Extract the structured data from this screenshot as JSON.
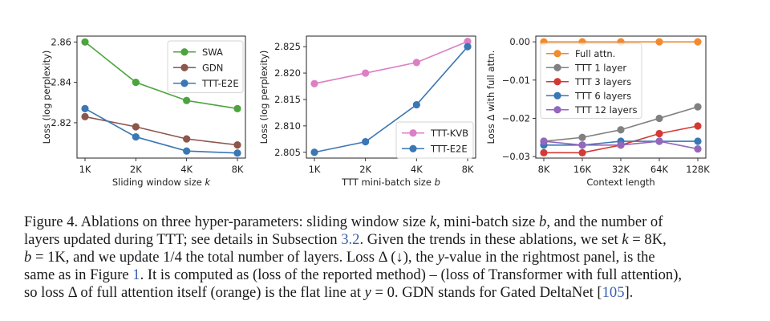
{
  "chart_data": [
    {
      "type": "line",
      "id": "sliding-window",
      "title": "",
      "xlabel": "Sliding window size k",
      "xlabel_italic_suffix": "k",
      "ylabel": "Loss (log perplexity)",
      "categories": [
        "1K",
        "2K",
        "4K",
        "8K"
      ],
      "ylim": [
        2.8025,
        2.8629
      ],
      "yticks": [
        2.82,
        2.84,
        2.86
      ],
      "ytick_labels": [
        "2.82",
        "2.84",
        "2.86"
      ],
      "grid": false,
      "legend_position": "top-right",
      "series": [
        {
          "name": "SWA",
          "color": "#4ca43c",
          "values": [
            2.86,
            2.84,
            2.831,
            2.827
          ]
        },
        {
          "name": "GDN",
          "color": "#8c564b",
          "values": [
            2.823,
            2.818,
            2.812,
            2.809
          ]
        },
        {
          "name": "TTT-E2E",
          "color": "#3a77b4",
          "values": [
            2.827,
            2.813,
            2.806,
            2.805
          ]
        }
      ]
    },
    {
      "type": "line",
      "id": "mini-batch",
      "title": "",
      "xlabel": "TTT mini-batch size b",
      "xlabel_italic_suffix": "b",
      "ylabel": "Loss (log perplexity)",
      "categories": [
        "1K",
        "2K",
        "4K",
        "8K"
      ],
      "ylim": [
        2.8039,
        2.827
      ],
      "yticks": [
        2.805,
        2.81,
        2.815,
        2.82,
        2.825
      ],
      "ytick_labels": [
        "2.805",
        "2.810",
        "2.815",
        "2.820",
        "2.825"
      ],
      "grid": false,
      "legend_position": "bottom-right",
      "series": [
        {
          "name": "TTT-KVB",
          "color": "#dc7fc4",
          "values": [
            2.818,
            2.82,
            2.822,
            2.826
          ]
        },
        {
          "name": "TTT-E2E",
          "color": "#3a77b4",
          "values": [
            2.805,
            2.807,
            2.814,
            2.825
          ]
        }
      ]
    },
    {
      "type": "line",
      "id": "context-length",
      "title": "",
      "xlabel": "Context length",
      "xlabel_italic_suffix": "",
      "ylabel": "Loss Δ with full attn.",
      "categories": [
        "8K",
        "16K",
        "32K",
        "64K",
        "128K"
      ],
      "ylim": [
        -0.0304,
        0.0015
      ],
      "yticks": [
        0.0,
        -0.01,
        -0.02,
        -0.03
      ],
      "ytick_labels": [
        "0.00",
        "−0.01",
        "−0.02",
        "−0.03"
      ],
      "grid": false,
      "legend_position": "top-left",
      "series": [
        {
          "name": "Full attn.",
          "color": "#f28a2e",
          "values": [
            0.0,
            0.0,
            0.0,
            0.0,
            0.0
          ]
        },
        {
          "name": "TTT 1 layer",
          "color": "#808080",
          "values": [
            -0.026,
            -0.025,
            -0.023,
            -0.02,
            -0.017
          ]
        },
        {
          "name": "TTT 3 layers",
          "color": "#d23a35",
          "values": [
            -0.029,
            -0.029,
            -0.027,
            -0.024,
            -0.022
          ]
        },
        {
          "name": "TTT 6 layers",
          "color": "#3a77b4",
          "values": [
            -0.027,
            -0.027,
            -0.026,
            -0.026,
            -0.026
          ]
        },
        {
          "name": "TTT 12 layers",
          "color": "#9467bd",
          "values": [
            -0.026,
            -0.027,
            -0.027,
            -0.026,
            -0.028
          ]
        }
      ]
    }
  ],
  "caption": {
    "lines": [
      [
        {
          "t": "Figure 4. Ablations on three hyper-parameters: sliding window size "
        },
        {
          "t": "k",
          "i": true
        },
        {
          "t": ", mini-batch size "
        },
        {
          "t": "b",
          "i": true
        },
        {
          "t": ", and the number of"
        }
      ],
      [
        {
          "t": "layers updated during TTT; see details in Subsection "
        },
        {
          "t": "3.2",
          "ref": true
        },
        {
          "t": ". Given the trends in these ablations, we set "
        },
        {
          "t": "k",
          "i": true
        },
        {
          "t": " = 8K,"
        }
      ],
      [
        {
          "t": "b",
          "i": true
        },
        {
          "t": " = 1K, and we update 1/4 the total number of layers.  Loss Δ (↓), the "
        },
        {
          "t": "y",
          "i": true
        },
        {
          "t": "-value in the rightmost panel, is the"
        }
      ],
      [
        {
          "t": "same as in Figure "
        },
        {
          "t": "1",
          "ref": true
        },
        {
          "t": ". It is computed as (loss of the reported method) – (loss of Transformer with full attention),"
        }
      ],
      [
        {
          "t": "so loss Δ of full attention itself (orange) is the flat line at "
        },
        {
          "t": "y",
          "i": true
        },
        {
          "t": " = 0. GDN stands for Gated DeltaNet ["
        },
        {
          "t": "105",
          "ref": true
        },
        {
          "t": "]."
        }
      ]
    ]
  }
}
